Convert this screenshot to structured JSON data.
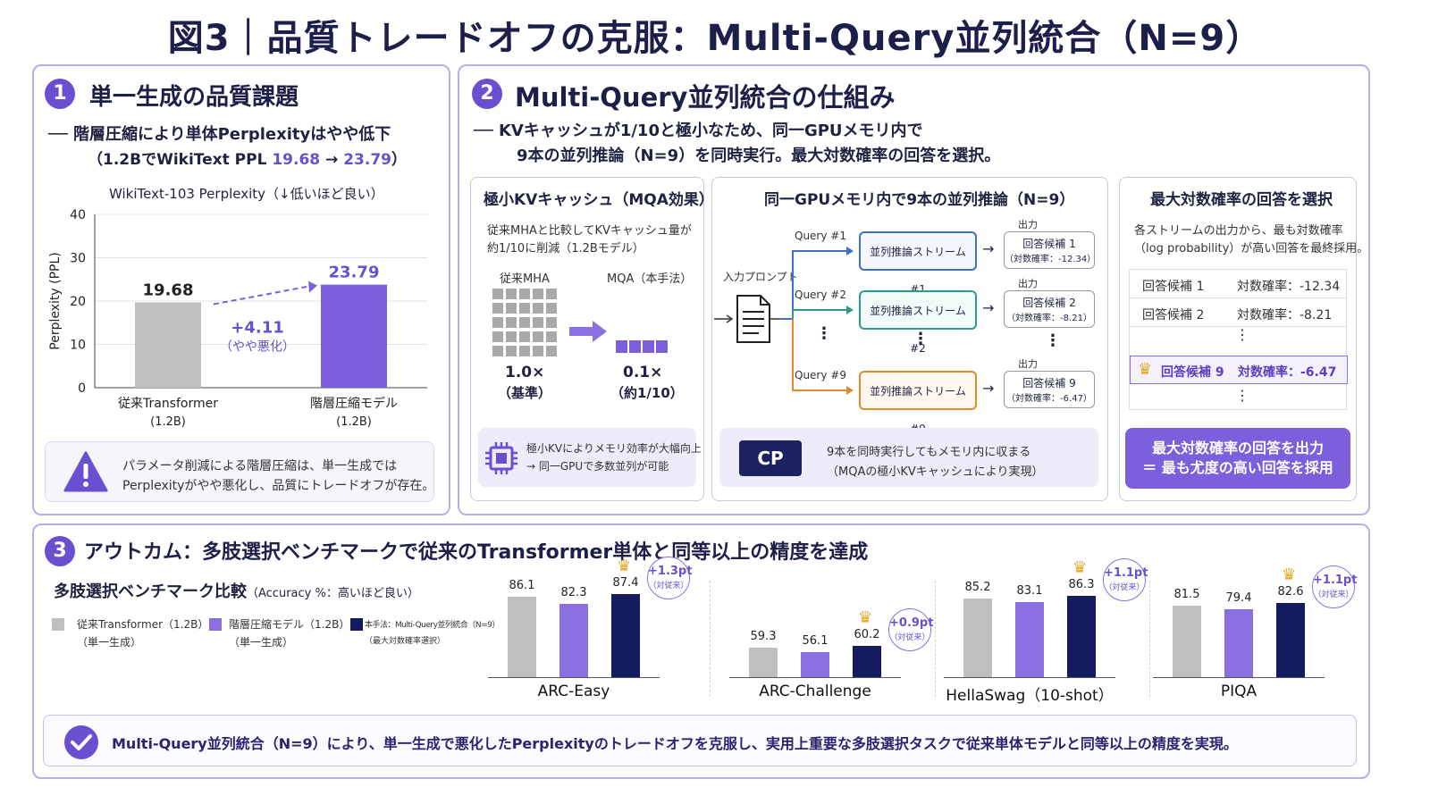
{
  "title": "図3｜品質トレードオフの克服：Multi-Query並列統合（N=9）",
  "panel1": {
    "num": "1",
    "heading": "単一生成の品質課題",
    "subtitle": "── 階層圧縮により単体Perplexityはやや低下",
    "note_prefix": "（1.2BでWikiText PPL ",
    "note_from": "19.68",
    "note_arrow": " → ",
    "note_to": "23.79",
    "note_suffix": "）",
    "warning_line1": "パラメータ削減による階層圧縮は、単一生成では",
    "warning_line2": "Perplexityがやや悪化し、品質にトレードオフが存在。"
  },
  "chart1": {
    "type": "bar",
    "title": "WikiText-103 Perplexity（↓低いほど良い）",
    "ylabel": "Perplexity (PPL)",
    "ylim": [
      0,
      40
    ],
    "yticks": [
      "0",
      "10",
      "20",
      "30",
      "40"
    ],
    "categories": [
      "従来Transformer",
      "階層圧縮モデル"
    ],
    "category_sub": [
      "(1.2B)",
      "(1.2B)"
    ],
    "values": [
      19.68,
      23.79
    ],
    "value_labels": [
      "19.68",
      "23.79"
    ],
    "colors": [
      "#bfbfbf",
      "#7b5fdc"
    ],
    "delta": "+4.11",
    "delta_note": "（やや悪化）"
  },
  "panel2": {
    "num": "2",
    "heading": "Multi-Query並列統合の仕組み",
    "line1": "── KVキャッシュが1/10と極小なため、同一GPUメモリ内で",
    "line2": "9本の並列推論（N=9）を同時実行。最大対数確率の回答を選択。",
    "kv": {
      "title": "極小KVキャッシュ（MQA効果）",
      "desc1": "従来MHAと比較してKVキャッシュ量が",
      "desc2": "約1/10に削減（1.2Bモデル）",
      "mha_label": "従来MHA",
      "mqa_label": "MQA（本手法）",
      "mha_value": "1.0×",
      "mha_note": "（基準）",
      "mqa_value": "0.1×",
      "mqa_note": "（約1/10）",
      "foot1": "極小KVによりメモリ効率が大幅向上",
      "foot2": "→ 同一GPUで多数並列が可能"
    },
    "parallel": {
      "title": "同一GPUメモリ内で9本の並列推論（N=9）",
      "input_label": "入力プロンプト",
      "output_label": "出力",
      "streams": [
        {
          "query": "Query #1",
          "stream": "並列推論ストリーム #1",
          "cand": "回答候補 1",
          "score": "（対数確率：-12.34）"
        },
        {
          "query": "Query #2",
          "stream": "並列推論ストリーム #2",
          "cand": "回答候補 2",
          "score": "（対数確率：-8.21）"
        },
        {
          "query": "Query #9",
          "stream": "並列推論ストリーム #9",
          "cand": "回答候補 9",
          "score": "（対数確率：-6.47）"
        }
      ],
      "gpu_label": "CP",
      "foot1": "9本を同時実行してもメモリ内に収まる",
      "foot2": "（MQAの極小KVキャッシュにより実現）"
    },
    "select": {
      "title": "最大対数確率の回答を選択",
      "desc1": "各ストリームの出力から、最も対数確率",
      "desc2": "（log probability）が高い回答を最終採用。",
      "rows": [
        {
          "cand": "回答候補 1",
          "score": "対数確率：-12.34"
        },
        {
          "cand": "回答候補 2",
          "score": "対数確率：-8.21"
        },
        {
          "cand": "回答候補 9",
          "score": "対数確率：-6.47"
        }
      ],
      "btn1": "最大対数確率の回答を出力",
      "btn2": "＝ 最も尤度の高い回答を採用"
    }
  },
  "panel3": {
    "num": "3",
    "heading": "アウトカム：多肢選択ベンチマークで従来のTransformer単体と同等以上の精度を達成",
    "chart_title": "多肢選択ベンチマーク比較",
    "chart_note": "（Accuracy %：高いほど良い）",
    "legend": [
      {
        "label": "従来Transformer（1.2B）",
        "sub": "（単一生成）",
        "color": "#bfbfbf"
      },
      {
        "label": "階層圧縮モデル（1.2B）",
        "sub": "（単一生成）",
        "color": "#8a6fe0"
      },
      {
        "label": "本手法：Multi-Query並列統合（N=9）",
        "sub": "（最大対数確率選択）",
        "color": "#141b5e"
      }
    ],
    "conclusion": "Multi-Query並列統合（N=9）により、単一生成で悪化したPerplexityのトレードオフを克服し、実用上重要な多肢選択タスクで従来単体モデルと同等以上の精度を実現。"
  },
  "chart_data": {
    "type": "bar",
    "title": "多肢選択ベンチマーク比較",
    "ylabel": "Accuracy %",
    "categories": [
      "ARC-Easy",
      "ARC-Challenge",
      "HellaSwag（10-shot）",
      "PIQA"
    ],
    "series": [
      {
        "name": "従来Transformer（1.2B）",
        "values": [
          86.1,
          59.3,
          85.2,
          81.5
        ],
        "labels": [
          "86.1",
          "59.3",
          "85.2",
          "81.5"
        ]
      },
      {
        "name": "階層圧縮モデル（1.2B）",
        "values": [
          82.3,
          56.1,
          83.1,
          79.4
        ],
        "labels": [
          "82.3",
          "56.1",
          "83.1",
          "79.4"
        ]
      },
      {
        "name": "本手法：Multi-Query並列統合（N=9）",
        "values": [
          87.4,
          60.2,
          86.3,
          82.6
        ],
        "labels": [
          "87.4",
          "60.2",
          "86.3",
          "82.6"
        ]
      }
    ],
    "deltas": [
      "+1.3pt",
      "+0.9pt",
      "+1.1pt",
      "+1.1pt"
    ],
    "delta_note": "（対従来）"
  }
}
